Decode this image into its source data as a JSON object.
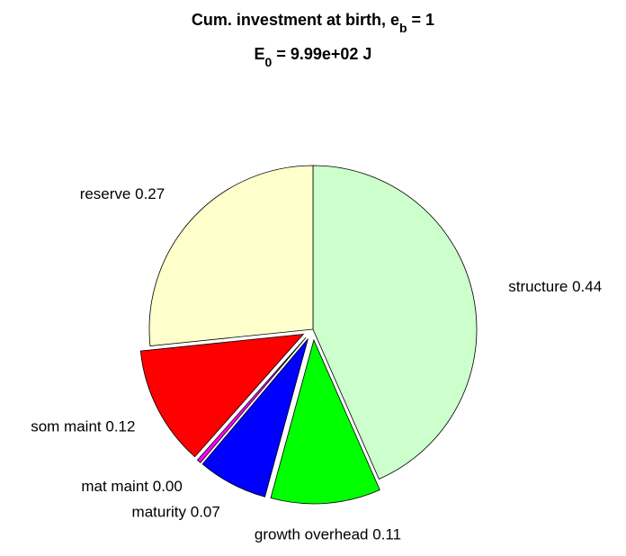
{
  "chart_data": {
    "type": "pie",
    "title": [
      "Cum. investment at birth, e",
      "b",
      " = 1"
    ],
    "subtitle": [
      "E",
      "0",
      " = 9.99e+02 J"
    ],
    "categories": [
      "structure",
      "growth overhead",
      "maturity",
      "mat maint",
      "som maint",
      "reserve"
    ],
    "values": [
      0.44,
      0.11,
      0.07,
      0.004,
      0.12,
      0.27
    ],
    "value_labels": [
      "0.44",
      "0.11",
      "0.07",
      "0.00",
      "0.12",
      "0.27"
    ],
    "colors": [
      "#ccffcc",
      "#00ff00",
      "#0000ff",
      "#ff00ff",
      "#ff0000",
      "#ffffcc"
    ],
    "explode": [
      false,
      true,
      true,
      true,
      true,
      false
    ]
  }
}
